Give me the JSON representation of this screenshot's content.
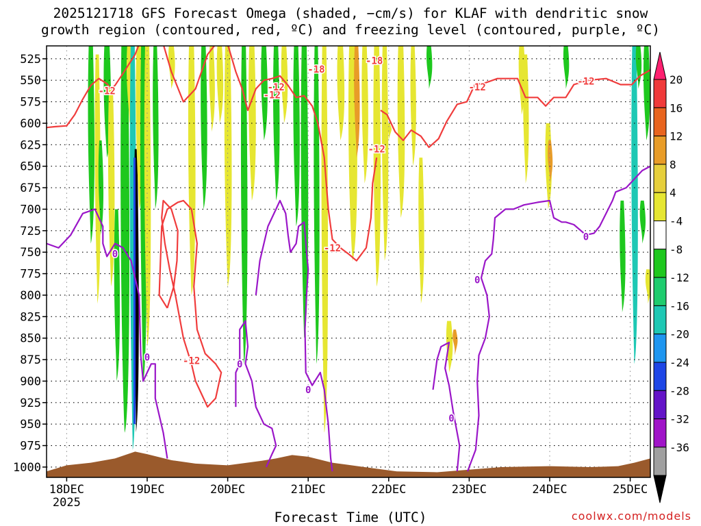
{
  "chart_data": {
    "type": "heatmap",
    "title_line1": "2025121718 GFS Forecast Omega (shaded, −cm/s) for KLAF with dendritic snow",
    "title_line2": "growth region (contoured, red, ºC) and freezing level (contoured, purple, ºC)",
    "xlabel": "Forecast Time (UTC)",
    "ylabel": "",
    "x_ticks": [
      "18DEC",
      "19DEC",
      "20DEC",
      "21DEC",
      "22DEC",
      "23DEC",
      "24DEC",
      "25DEC"
    ],
    "x_tick_sub": "2025",
    "x_range_days": [
      -0.25,
      7.25
    ],
    "y_ticks": [
      525,
      550,
      575,
      600,
      625,
      650,
      675,
      700,
      725,
      750,
      775,
      800,
      825,
      850,
      875,
      900,
      925,
      950,
      975,
      1000
    ],
    "y_range_hpa": [
      510,
      1012
    ],
    "grid": true,
    "colorbar": {
      "labels": [
        20,
        16,
        12,
        8,
        4,
        -4,
        -8,
        -12,
        -16,
        -20,
        -24,
        -28,
        -32,
        -36
      ],
      "colors": [
        "#ff2070",
        "#f03a3a",
        "#e8641e",
        "#e89c28",
        "#e6cf3c",
        "#e6e632",
        "#ffffff",
        "#1ec81e",
        "#1ecc6e",
        "#1ec8b4",
        "#1e96f0",
        "#1e46e6",
        "#6414c8",
        "#a014c8",
        "#a0a0a0",
        "#000000"
      ]
    },
    "contour_labels": {
      "dgz": "-18 / -12",
      "freezing": "0"
    },
    "dgz_upper_contour": [
      [
        -0.25,
        605
      ],
      [
        -0.15,
        604
      ],
      [
        0,
        603
      ],
      [
        0.1,
        590
      ],
      [
        0.2,
        572
      ],
      [
        0.3,
        556
      ],
      [
        0.4,
        548
      ],
      [
        0.5,
        554
      ],
      [
        0.55,
        560
      ],
      [
        0.6,
        556
      ],
      [
        0.7,
        542
      ],
      [
        0.85,
        520
      ],
      [
        0.9,
        508
      ],
      [
        1.2,
        508
      ],
      [
        1.3,
        540
      ],
      [
        1.45,
        575
      ],
      [
        1.6,
        560
      ],
      [
        1.75,
        520
      ],
      [
        1.85,
        508
      ]
    ],
    "dgz_right_contour": [
      [
        3.9,
        585
      ],
      [
        3.98,
        590
      ],
      [
        4.08,
        610
      ],
      [
        4.18,
        620
      ],
      [
        4.28,
        608
      ],
      [
        4.4,
        615
      ],
      [
        4.5,
        628
      ],
      [
        4.62,
        618
      ],
      [
        4.72,
        598
      ],
      [
        4.85,
        578
      ],
      [
        4.97,
        575
      ],
      [
        5.07,
        555
      ],
      [
        5.2,
        553
      ],
      [
        5.35,
        548
      ],
      [
        5.6,
        548
      ],
      [
        5.7,
        570
      ],
      [
        5.85,
        570
      ],
      [
        5.95,
        580
      ],
      [
        6.05,
        570
      ],
      [
        6.2,
        570
      ],
      [
        6.3,
        555
      ],
      [
        6.48,
        550
      ],
      [
        6.7,
        548
      ],
      [
        6.88,
        555
      ],
      [
        7.02,
        555
      ],
      [
        7.12,
        545
      ],
      [
        7.25,
        538
      ]
    ],
    "dgz_mid_contour": [
      [
        2.0,
        508
      ],
      [
        2.1,
        540
      ],
      [
        2.18,
        560
      ],
      [
        2.25,
        585
      ],
      [
        2.35,
        560
      ],
      [
        2.45,
        550
      ],
      [
        2.55,
        548
      ],
      [
        2.65,
        545
      ],
      [
        2.75,
        556
      ],
      [
        2.85,
        570
      ],
      [
        2.95,
        568
      ],
      [
        3.05,
        580
      ],
      [
        3.12,
        600
      ],
      [
        3.2,
        640
      ],
      [
        3.25,
        700
      ],
      [
        3.3,
        735
      ],
      [
        3.4,
        745
      ],
      [
        3.5,
        752
      ],
      [
        3.6,
        760
      ],
      [
        3.72,
        745
      ],
      [
        3.78,
        710
      ],
      [
        3.8,
        670
      ],
      [
        3.85,
        640
      ]
    ],
    "dgz_low_contour": [
      [
        1.25,
        815
      ],
      [
        1.33,
        790
      ],
      [
        1.37,
        760
      ],
      [
        1.38,
        725
      ],
      [
        1.3,
        700
      ],
      [
        1.2,
        690
      ],
      [
        1.18,
        710
      ],
      [
        1.22,
        740
      ],
      [
        1.28,
        770
      ],
      [
        1.35,
        800
      ],
      [
        1.45,
        850
      ],
      [
        1.55,
        880
      ],
      [
        1.6,
        900
      ],
      [
        1.75,
        930
      ],
      [
        1.85,
        920
      ],
      [
        1.92,
        890
      ],
      [
        1.85,
        880
      ],
      [
        1.72,
        868
      ],
      [
        1.62,
        840
      ],
      [
        1.58,
        790
      ],
      [
        1.62,
        740
      ],
      [
        1.55,
        700
      ],
      [
        1.45,
        690
      ],
      [
        1.38,
        692
      ],
      [
        1.25,
        700
      ],
      [
        1.18,
        720
      ],
      [
        1.15,
        800
      ],
      [
        1.25,
        815
      ]
    ],
    "freezing_contour_1": [
      [
        -0.25,
        740
      ],
      [
        -0.1,
        745
      ],
      [
        0.05,
        730
      ],
      [
        0.2,
        705
      ],
      [
        0.35,
        700
      ],
      [
        0.45,
        720
      ],
      [
        0.45,
        740
      ],
      [
        0.5,
        755
      ],
      [
        0.6,
        740
      ],
      [
        0.7,
        745
      ],
      [
        0.8,
        760
      ],
      [
        0.9,
        800
      ],
      [
        0.92,
        870
      ],
      [
        0.95,
        900
      ],
      [
        1.05,
        880
      ],
      [
        1.1,
        880
      ],
      [
        1.1,
        920
      ],
      [
        1.2,
        960
      ],
      [
        1.25,
        990
      ]
    ],
    "freezing_contour_2": [
      [
        2.1,
        930
      ],
      [
        2.1,
        890
      ],
      [
        2.15,
        880
      ],
      [
        2.15,
        840
      ],
      [
        2.22,
        830
      ],
      [
        2.25,
        860
      ],
      [
        2.22,
        880
      ],
      [
        2.3,
        900
      ],
      [
        2.35,
        930
      ],
      [
        2.45,
        950
      ],
      [
        2.55,
        955
      ],
      [
        2.6,
        975
      ],
      [
        2.55,
        985
      ],
      [
        2.48,
        1000
      ]
    ],
    "freezing_contour_3": [
      [
        2.35,
        800
      ],
      [
        2.4,
        760
      ],
      [
        2.5,
        720
      ],
      [
        2.6,
        700
      ],
      [
        2.65,
        690
      ],
      [
        2.72,
        705
      ],
      [
        2.75,
        730
      ],
      [
        2.78,
        750
      ],
      [
        2.85,
        740
      ],
      [
        2.88,
        720
      ],
      [
        2.95,
        715
      ],
      [
        2.98,
        750
      ],
      [
        3.0,
        770
      ],
      [
        2.98,
        800
      ],
      [
        2.96,
        840
      ],
      [
        2.97,
        890
      ],
      [
        3.05,
        905
      ],
      [
        3.15,
        890
      ],
      [
        3.2,
        910
      ],
      [
        3.25,
        950
      ],
      [
        3.28,
        990
      ],
      [
        3.3,
        1005
      ]
    ],
    "freezing_contour_4": [
      [
        4.55,
        910
      ],
      [
        4.6,
        875
      ],
      [
        4.65,
        860
      ],
      [
        4.75,
        855
      ],
      [
        4.7,
        885
      ],
      [
        4.75,
        905
      ],
      [
        4.8,
        935
      ],
      [
        4.88,
        975
      ],
      [
        4.85,
        1005
      ]
    ],
    "freezing_contour_5": [
      [
        4.98,
        1005
      ],
      [
        5.08,
        980
      ],
      [
        5.12,
        940
      ],
      [
        5.1,
        900
      ],
      [
        5.12,
        870
      ],
      [
        5.2,
        850
      ],
      [
        5.25,
        825
      ],
      [
        5.22,
        800
      ],
      [
        5.15,
        780
      ],
      [
        5.2,
        760
      ],
      [
        5.28,
        752
      ],
      [
        5.3,
        735
      ],
      [
        5.32,
        710
      ],
      [
        5.45,
        700
      ],
      [
        5.55,
        700
      ],
      [
        5.68,
        695
      ],
      [
        5.85,
        692
      ],
      [
        6.0,
        690
      ],
      [
        6.05,
        710
      ],
      [
        6.15,
        715
      ],
      [
        6.2,
        715
      ],
      [
        6.3,
        718
      ],
      [
        6.45,
        730
      ],
      [
        6.55,
        728
      ],
      [
        6.62,
        720
      ],
      [
        6.7,
        705
      ],
      [
        6.78,
        690
      ],
      [
        6.82,
        680
      ],
      [
        6.95,
        675
      ],
      [
        7.05,
        665
      ],
      [
        7.15,
        655
      ],
      [
        7.25,
        650
      ]
    ]
  },
  "credit": "coolwx.com/models"
}
